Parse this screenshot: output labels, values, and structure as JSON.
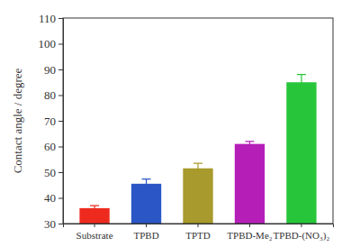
{
  "chart_data": {
    "type": "bar",
    "categories": [
      "Substrate",
      "TPBD",
      "TPTD",
      "TPBD-Me₂",
      "TPBD-(NO₃)₂"
    ],
    "values": [
      36,
      45.5,
      51.5,
      61,
      85
    ],
    "errors": [
      1,
      1.8,
      2,
      1,
      3
    ],
    "colors": [
      "#ee2a1f",
      "#2a56c6",
      "#a89a2c",
      "#b51fb8",
      "#27c63a"
    ],
    "y_label": "Contact angle / degree",
    "ylim": [
      30,
      110
    ],
    "yticks": [
      30,
      40,
      50,
      60,
      70,
      80,
      90,
      100,
      110
    ]
  }
}
